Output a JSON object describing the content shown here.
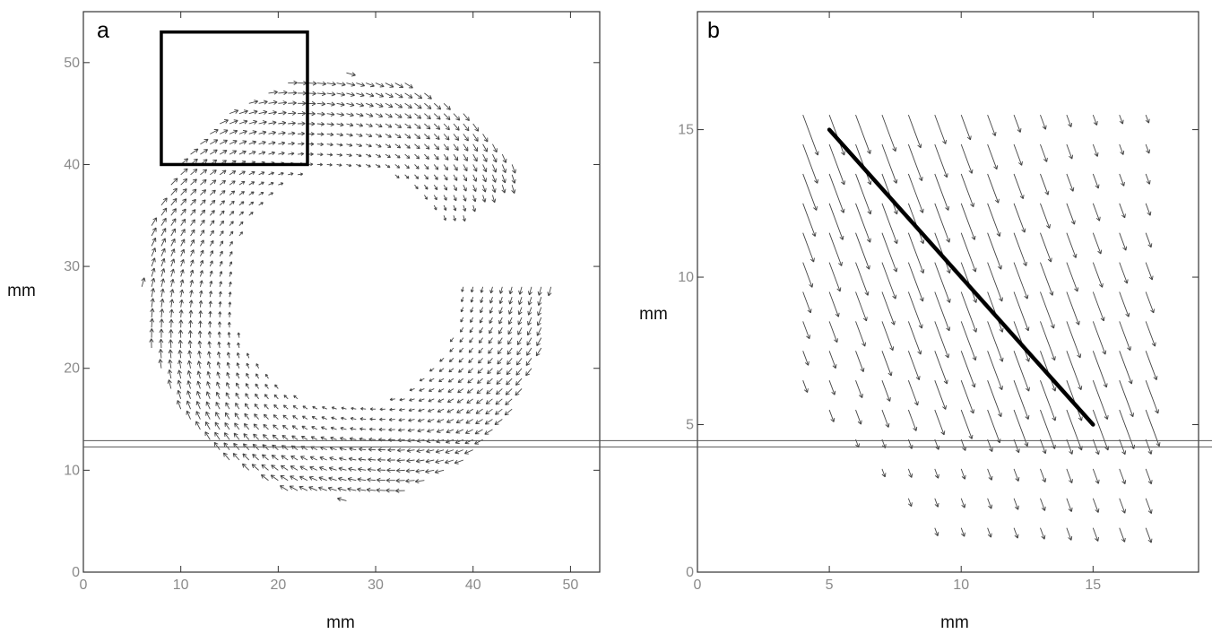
{
  "chart_data": [
    {
      "panel": "a",
      "type": "scatter",
      "plot": "vector field",
      "xlabel": "mm",
      "ylabel": "mm",
      "xlim": [
        0,
        53
      ],
      "ylim": [
        0,
        55
      ],
      "xticks": [
        0,
        10,
        20,
        30,
        40,
        50
      ],
      "yticks": [
        0,
        10,
        20,
        30,
        40,
        50
      ],
      "x_tick_labels": [
        "0",
        "10",
        "20",
        "30",
        "40",
        "50"
      ],
      "y_tick_labels": [
        "0",
        "10",
        "20",
        "30",
        "40",
        "50"
      ],
      "region": {
        "shape": "annulus",
        "center": [
          27,
          28
        ],
        "outer_radius": 21,
        "inner_radius": 12,
        "opening_direction_deg": 15
      },
      "grid_spacing": 1,
      "zoom_box": {
        "x": [
          8,
          23
        ],
        "y": [
          40,
          53
        ]
      },
      "cut_line_y": 12.6
    },
    {
      "panel": "b",
      "type": "scatter",
      "plot": "vector field",
      "xlabel": "mm",
      "ylabel": "mm",
      "xlim": [
        0,
        19
      ],
      "ylim": [
        0,
        19
      ],
      "xticks": [
        0,
        5,
        10,
        15
      ],
      "yticks": [
        0,
        5,
        10,
        15
      ],
      "x_tick_labels": [
        "0",
        "5",
        "10",
        "15"
      ],
      "y_tick_labels": [
        "0",
        "5",
        "10",
        "15"
      ],
      "region": {
        "upper_right_corner": [
          17,
          16
        ],
        "lower_left_corner": [
          4,
          1.5
        ],
        "diagonal_boundary": "x + y >= 10"
      },
      "grid_spacing": 1,
      "line": {
        "x": [
          5,
          15
        ],
        "y": [
          15,
          5
        ]
      }
    }
  ],
  "panel_labels": {
    "a": "a",
    "b": "b"
  }
}
